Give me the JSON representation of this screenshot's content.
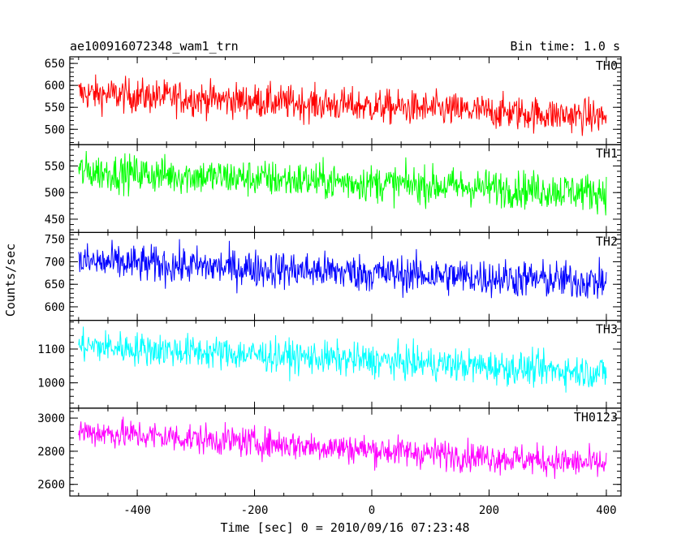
{
  "chart_data": {
    "type": "line",
    "title": "ae100916072348_wam1_trn",
    "subtitle": "Bin time: 1.0 s",
    "xlabel": "Time [sec] 0 = 2010/09/16 07:23:48",
    "ylabel": "Counts/sec",
    "xlim": [
      -515,
      425
    ],
    "xticks": [
      -400,
      -200,
      0,
      200,
      400
    ],
    "x_start": -500,
    "x_end": 400,
    "x_step": 1,
    "legend": "none",
    "grid": false,
    "panels": [
      {
        "name": "TH0",
        "color": "#ff0000",
        "ylim": [
          465,
          665
        ],
        "yticks": [
          500,
          550,
          600,
          650
        ],
        "trend_start": 582,
        "trend_end": 528,
        "noise": 28
      },
      {
        "name": "TH1",
        "color": "#00ff00",
        "ylim": [
          425,
          590
        ],
        "yticks": [
          450,
          500,
          550
        ],
        "trend_start": 540,
        "trend_end": 500,
        "noise": 25
      },
      {
        "name": "TH2",
        "color": "#0000ff",
        "ylim": [
          570,
          765
        ],
        "yticks": [
          600,
          650,
          700,
          750
        ],
        "trend_start": 700,
        "trend_end": 655,
        "noise": 30
      },
      {
        "name": "TH3",
        "color": "#00ffff",
        "ylim": [
          925,
          1185
        ],
        "yticks": [
          1000,
          1100
        ],
        "trend_start": 1110,
        "trend_end": 1030,
        "noise": 35
      },
      {
        "name": "TH0123",
        "color": "#ff00ff",
        "ylim": [
          2530,
          3060
        ],
        "yticks": [
          2600,
          2800,
          3000
        ],
        "trend_start": 2920,
        "trend_end": 2720,
        "noise": 65
      }
    ]
  }
}
